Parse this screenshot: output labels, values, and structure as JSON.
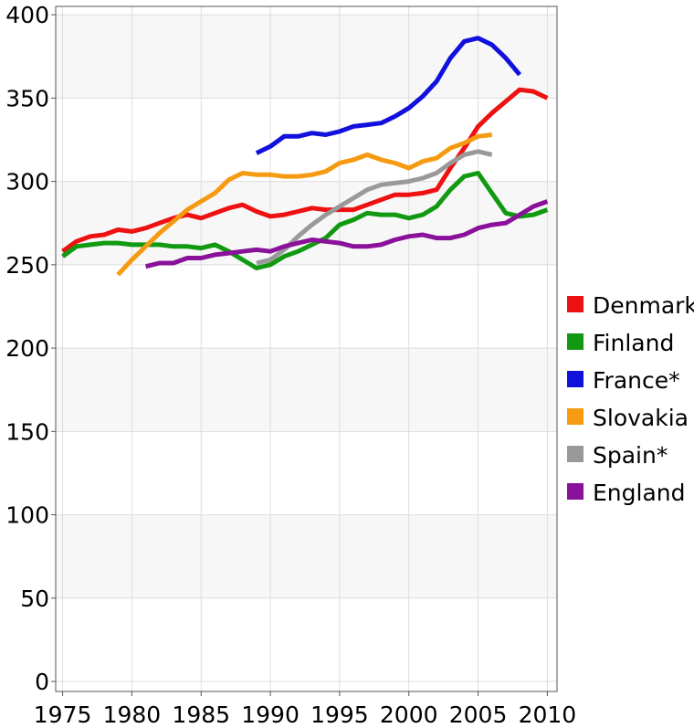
{
  "chart_data": {
    "type": "line",
    "title": "",
    "xlabel": "",
    "ylabel": "",
    "xlim": [
      1974.5,
      2010.7
    ],
    "ylim": [
      -6,
      405
    ],
    "x_ticks": [
      "1975",
      "1980",
      "1985",
      "1990",
      "1995",
      "2000",
      "2005",
      "2010"
    ],
    "y_ticks": [
      "0",
      "50",
      "100",
      "150",
      "200",
      "250",
      "300",
      "350",
      "400"
    ],
    "grid": true,
    "legend_position": "right",
    "series": [
      {
        "name": "Denmark",
        "color": "#ee1111",
        "x": [
          1975,
          1976,
          1977,
          1978,
          1979,
          1980,
          1981,
          1982,
          1983,
          1984,
          1985,
          1986,
          1987,
          1988,
          1989,
          1990,
          1991,
          1992,
          1993,
          1994,
          1995,
          1996,
          1997,
          1998,
          1999,
          2000,
          2001,
          2002,
          2003,
          2004,
          2005,
          2006,
          2007,
          2008,
          2009,
          2010
        ],
        "y": [
          258,
          264,
          267,
          268,
          271,
          270,
          272,
          275,
          278,
          280,
          278,
          281,
          284,
          286,
          282,
          279,
          280,
          282,
          284,
          283,
          283,
          283,
          286,
          289,
          292,
          292,
          293,
          295,
          308,
          320,
          333,
          341,
          348,
          355,
          354,
          350
        ]
      },
      {
        "name": "Finland",
        "color": "#119911",
        "x": [
          1975,
          1976,
          1977,
          1978,
          1979,
          1980,
          1981,
          1982,
          1983,
          1984,
          1985,
          1986,
          1987,
          1988,
          1989,
          1990,
          1991,
          1992,
          1993,
          1994,
          1995,
          1996,
          1997,
          1998,
          1999,
          2000,
          2001,
          2002,
          2003,
          2004,
          2005,
          2006,
          2007,
          2008,
          2009,
          2010
        ],
        "y": [
          255,
          261,
          262,
          263,
          263,
          262,
          262,
          262,
          261,
          261,
          260,
          262,
          258,
          253,
          248,
          250,
          255,
          258,
          262,
          266,
          274,
          277,
          281,
          280,
          280,
          278,
          280,
          285,
          295,
          303,
          305,
          293,
          281,
          279,
          280,
          283
        ]
      },
      {
        "name": "France*",
        "color": "#1111dd",
        "x": [
          1989,
          1990,
          1991,
          1992,
          1993,
          1994,
          1995,
          1996,
          1997,
          1998,
          1999,
          2000,
          2001,
          2002,
          2003,
          2004,
          2005,
          2006,
          2007,
          2008
        ],
        "y": [
          317,
          321,
          327,
          327,
          329,
          328,
          330,
          333,
          334,
          335,
          339,
          344,
          351,
          360,
          374,
          384,
          386,
          382,
          374,
          364
        ]
      },
      {
        "name": "Slovakia",
        "color": "#f59a11",
        "x": [
          1979,
          1980,
          1981,
          1982,
          1983,
          1984,
          1985,
          1986,
          1987,
          1988,
          1989,
          1990,
          1991,
          1992,
          1993,
          1994,
          1995,
          1996,
          1997,
          1998,
          1999,
          2000,
          2001,
          2002,
          2003,
          2004,
          2005,
          2006
        ],
        "y": [
          244,
          253,
          261,
          269,
          276,
          283,
          288,
          293,
          301,
          305,
          304,
          304,
          303,
          303,
          304,
          306,
          311,
          313,
          316,
          313,
          311,
          308,
          312,
          314,
          320,
          323,
          327,
          328
        ]
      },
      {
        "name": "Spain*",
        "color": "#999999",
        "x": [
          1989,
          1990,
          1991,
          1992,
          1993,
          1994,
          1995,
          1996,
          1997,
          1998,
          1999,
          2000,
          2001,
          2002,
          2003,
          2004,
          2005,
          2006
        ],
        "y": [
          251,
          253,
          259,
          267,
          274,
          280,
          285,
          290,
          295,
          298,
          299,
          300,
          302,
          305,
          311,
          316,
          318,
          316
        ]
      },
      {
        "name": "England",
        "color": "#8a1199",
        "x": [
          1981,
          1982,
          1983,
          1984,
          1985,
          1986,
          1987,
          1988,
          1989,
          1990,
          1991,
          1992,
          1993,
          1994,
          1995,
          1996,
          1997,
          1998,
          1999,
          2000,
          2001,
          2002,
          2003,
          2004,
          2005,
          2006,
          2007,
          2008,
          2009,
          2010
        ],
        "y": [
          249,
          251,
          251,
          254,
          254,
          256,
          257,
          258,
          259,
          258,
          261,
          263,
          265,
          264,
          263,
          261,
          261,
          262,
          265,
          267,
          268,
          266,
          266,
          268,
          272,
          274,
          275,
          280,
          285,
          288
        ]
      }
    ]
  }
}
